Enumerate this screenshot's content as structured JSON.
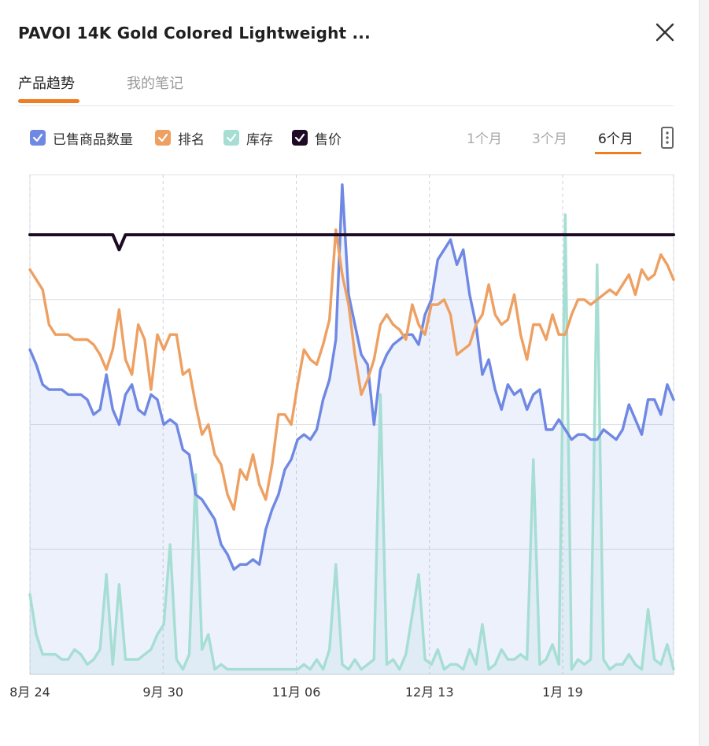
{
  "header": {
    "title": "PAVOI 14K Gold Colored Lightweight ..."
  },
  "tabs": [
    {
      "label": "产品趋势",
      "active": true
    },
    {
      "label": "我的笔记",
      "active": false
    }
  ],
  "legend": [
    {
      "label": "已售商品数量",
      "color": "#6f88e3",
      "checked": true
    },
    {
      "label": "排名",
      "color": "#eda062",
      "checked": true
    },
    {
      "label": "库存",
      "color": "#a6ded3",
      "checked": true
    },
    {
      "label": "售价",
      "color": "#1e0a24",
      "checked": true
    }
  ],
  "ranges": [
    {
      "label": "1个月",
      "active": false
    },
    {
      "label": "3个月",
      "active": false
    },
    {
      "label": "6个月",
      "active": true
    }
  ],
  "icons": {
    "close": "close-icon",
    "more": "more-options-icon",
    "check": "check-icon"
  },
  "accent_color": "#ef7d22",
  "chart_data": {
    "type": "line",
    "x_tick_labels": [
      "8月 24",
      "9月 30",
      "11月 06",
      "12月 13",
      "1月 19"
    ],
    "y_axis_labels_shown": false,
    "y_scale": "relative 0-100 (no tick labels shown)",
    "ylim": [
      0,
      100
    ],
    "grid": "vertical dashed at date ticks, horizontal solid",
    "series": [
      {
        "name": "已售商品数量",
        "color": "#6f88e3",
        "area_fill": true,
        "values": [
          65,
          62,
          58,
          57,
          57,
          57,
          56,
          56,
          56,
          55,
          52,
          53,
          60,
          53,
          50,
          56,
          58,
          53,
          52,
          56,
          55,
          50,
          51,
          50,
          45,
          44,
          36,
          35,
          33,
          31,
          26,
          24,
          21,
          22,
          22,
          23,
          22,
          29,
          33,
          36,
          41,
          43,
          47,
          48,
          47,
          49,
          55,
          59,
          67,
          98,
          76,
          70,
          64,
          62,
          50,
          61,
          64,
          66,
          67,
          68,
          68,
          66,
          72,
          75,
          83,
          85,
          87,
          82,
          85,
          76,
          70,
          60,
          63,
          57,
          53,
          58,
          56,
          57,
          53,
          56,
          57,
          49,
          49,
          51,
          49,
          47,
          48,
          48,
          47,
          47,
          49,
          48,
          47,
          49,
          54,
          51,
          48,
          55,
          55,
          52,
          58,
          55
        ]
      },
      {
        "name": "排名",
        "color": "#eda062",
        "area_fill": false,
        "values": [
          81,
          79,
          77,
          70,
          68,
          68,
          68,
          67,
          67,
          67,
          66,
          64,
          61,
          65,
          73,
          63,
          60,
          70,
          67,
          57,
          68,
          65,
          68,
          68,
          60,
          61,
          54,
          48,
          50,
          44,
          42,
          36,
          33,
          41,
          39,
          44,
          38,
          35,
          42,
          52,
          52,
          50,
          58,
          65,
          63,
          62,
          66,
          71,
          89,
          80,
          74,
          64,
          56,
          59,
          63,
          70,
          72,
          70,
          69,
          67,
          74,
          70,
          68,
          74,
          74,
          75,
          72,
          64,
          65,
          66,
          70,
          72,
          78,
          72,
          70,
          71,
          76,
          68,
          63,
          70,
          70,
          67,
          72,
          68,
          68,
          72,
          75,
          75,
          74,
          75,
          76,
          77,
          76,
          78,
          80,
          76,
          81,
          79,
          80,
          84,
          82,
          79
        ]
      },
      {
        "name": "库存",
        "color": "#a6ded3",
        "area_fill": true,
        "values": [
          16,
          8,
          4,
          4,
          4,
          3,
          3,
          5,
          4,
          2,
          3,
          5,
          20,
          2,
          18,
          3,
          3,
          3,
          4,
          5,
          8,
          10,
          26,
          3,
          1,
          4,
          40,
          5,
          8,
          1,
          2,
          1,
          1,
          1,
          1,
          1,
          1,
          1,
          1,
          1,
          1,
          1,
          1,
          2,
          1,
          3,
          1,
          5,
          22,
          2,
          1,
          3,
          1,
          2,
          3,
          56,
          2,
          3,
          1,
          4,
          12,
          20,
          3,
          2,
          5,
          1,
          2,
          2,
          1,
          5,
          2,
          10,
          1,
          2,
          5,
          3,
          3,
          4,
          3,
          43,
          2,
          3,
          6,
          2,
          92,
          1,
          3,
          2,
          3,
          82,
          3,
          1,
          2,
          2,
          4,
          2,
          1,
          13,
          3,
          2,
          6,
          1
        ]
      },
      {
        "name": "售价",
        "color": "#1e0a24",
        "area_fill": false,
        "values": [
          88,
          88,
          88,
          88,
          88,
          88,
          88,
          88,
          88,
          88,
          88,
          88,
          88,
          88,
          85,
          88,
          88,
          88,
          88,
          88,
          88,
          88,
          88,
          88,
          88,
          88,
          88,
          88,
          88,
          88,
          88,
          88,
          88,
          88,
          88,
          88,
          88,
          88,
          88,
          88,
          88,
          88,
          88,
          88,
          88,
          88,
          88,
          88,
          88,
          88,
          88,
          88,
          88,
          88,
          88,
          88,
          88,
          88,
          88,
          88,
          88,
          88,
          88,
          88,
          88,
          88,
          88,
          88,
          88,
          88,
          88,
          88,
          88,
          88,
          88,
          88,
          88,
          88,
          88,
          88,
          88,
          88,
          88,
          88,
          88,
          88,
          88,
          88,
          88,
          88,
          88,
          88,
          88,
          88,
          88,
          88,
          88,
          88,
          88,
          88,
          88,
          88
        ]
      }
    ]
  }
}
